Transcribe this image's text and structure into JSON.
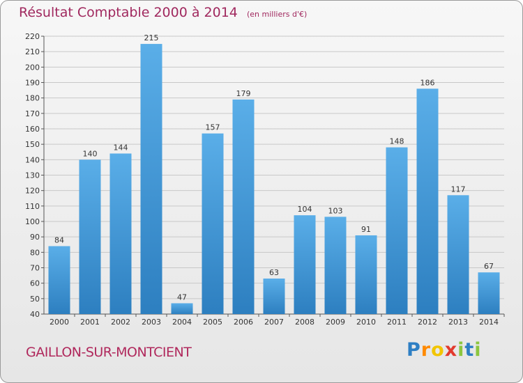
{
  "title": "Résultat Comptable 2000 à 2014",
  "subtitle": "(en milliers d'€)",
  "commune": "GAILLON-SUR-MONTCIENT",
  "logo": "Proxiti",
  "colors": {
    "bar_light": "#5aaee8",
    "bar_dark": "#2d7fc0",
    "title": "#a0285e",
    "grid": "#c8c8c8"
  },
  "chart_data": {
    "type": "bar",
    "title": "Résultat Comptable 2000 à 2014",
    "subtitle": "(en milliers d'€)",
    "categories": [
      "2000",
      "2001",
      "2002",
      "2003",
      "2004",
      "2005",
      "2006",
      "2007",
      "2008",
      "2009",
      "2010",
      "2011",
      "2012",
      "2013",
      "2014"
    ],
    "values": [
      84,
      140,
      144,
      215,
      47,
      157,
      179,
      63,
      104,
      103,
      91,
      148,
      186,
      117,
      67
    ],
    "ylim": [
      40,
      220
    ],
    "ytick_step": 10,
    "grid": true,
    "xlabel": "",
    "ylabel": ""
  }
}
